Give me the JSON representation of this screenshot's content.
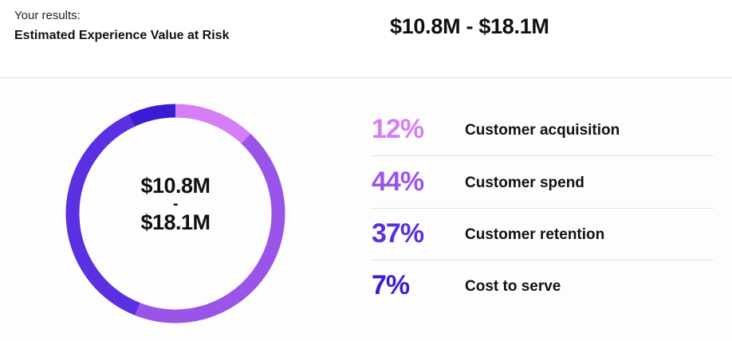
{
  "header": {
    "subtitle": "Your results:",
    "title": "Estimated Experience Value at Risk",
    "value": "$10.8M - $18.1M"
  },
  "donut_center": {
    "low": "$10.8M",
    "dash": "-",
    "high": "$18.1M"
  },
  "chart_data": {
    "type": "pie",
    "style": "donut",
    "categories": [
      "Customer acquisition",
      "Customer spend",
      "Customer retention",
      "Cost to serve"
    ],
    "values": [
      12,
      44,
      37,
      7
    ],
    "labels": [
      "12%",
      "44%",
      "37%",
      "7%"
    ],
    "colors": [
      "#d57ef5",
      "#9a55e8",
      "#5a30e0",
      "#3a1cd6"
    ],
    "legend": "right"
  }
}
